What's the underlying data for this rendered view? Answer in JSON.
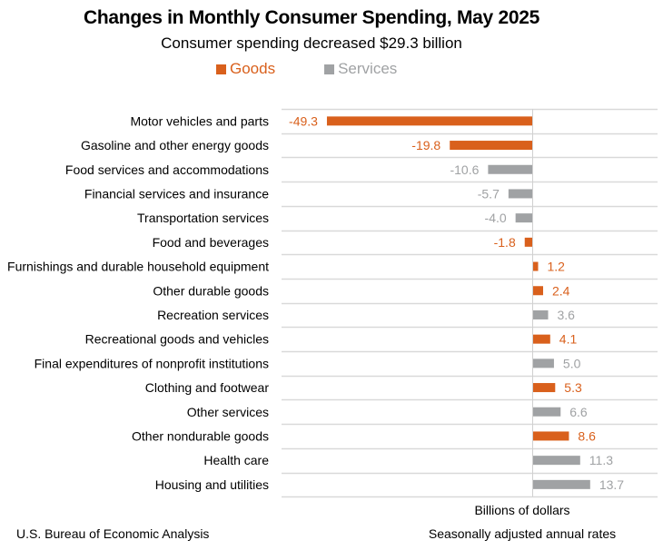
{
  "colors": {
    "goods": "#D9601C",
    "services": "#A0A2A4",
    "grid": "#D9D9D9",
    "axis": "#D0D0D0"
  },
  "chart_data": {
    "type": "bar",
    "orientation": "horizontal",
    "title": "Changes in Monthly Consumer Spending, May 2025",
    "subtitle": "Consumer spending decreased $29.3 billion",
    "xlabel": "Billions of dollars",
    "ylabel": "",
    "legend": {
      "position": "top",
      "entries": [
        {
          "name": "Goods",
          "color": "#D9601C"
        },
        {
          "name": "Services",
          "color": "#A0A2A4"
        }
      ]
    },
    "grid": true,
    "xlim": [
      -49.3,
      30
    ],
    "categories": [
      "Motor vehicles and parts",
      "Gasoline and other energy goods",
      "Food services and accommodations",
      "Financial services and insurance",
      "Transportation services",
      "Food and beverages",
      "Furnishings and durable household equipment",
      "Other durable goods",
      "Recreation services",
      "Recreational goods and vehicles",
      "Final expenditures of nonprofit institutions",
      "Clothing and footwear",
      "Other services",
      "Other nondurable goods",
      "Health care",
      "Housing and utilities"
    ],
    "values": [
      -49.3,
      -19.8,
      -10.6,
      -5.7,
      -4.0,
      -1.8,
      1.2,
      2.4,
      3.6,
      4.1,
      5.0,
      5.3,
      6.6,
      8.6,
      11.3,
      13.7
    ],
    "labels": [
      "-49.3",
      "-19.8",
      "-10.6",
      "-5.7",
      "-4.0",
      "-1.8",
      "1.2",
      "2.4",
      "3.6",
      "4.1",
      "5.0",
      "5.3",
      "6.6",
      "8.6",
      "11.3",
      "13.7"
    ],
    "groups": [
      "Goods",
      "Goods",
      "Services",
      "Services",
      "Services",
      "Goods",
      "Goods",
      "Goods",
      "Services",
      "Goods",
      "Services",
      "Goods",
      "Services",
      "Goods",
      "Services",
      "Services"
    ]
  },
  "footer": {
    "source": "U.S. Bureau of Economic Analysis",
    "axis_title": "Billions of dollars",
    "note": "Seasonally adjusted annual rates"
  }
}
